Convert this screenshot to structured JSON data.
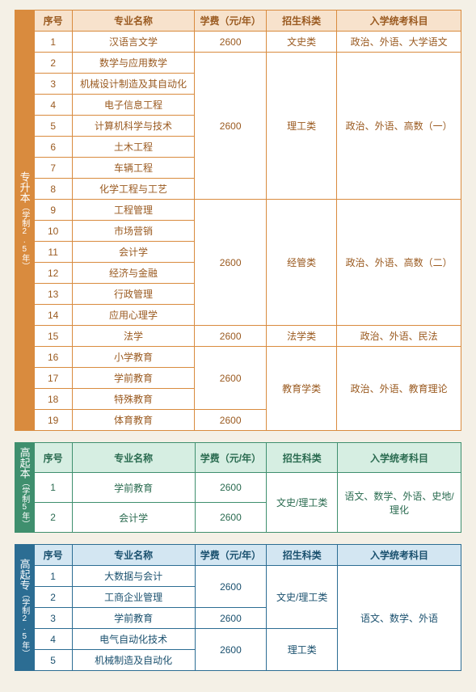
{
  "headers": {
    "idx": "序号",
    "name": "专业名称",
    "fee": "学费（元/年）",
    "cat": "招生科类",
    "exam": "入学统考科目"
  },
  "colors": {
    "orange": "#d98b3e",
    "green": "#3f8f6e",
    "blue": "#2c6d93",
    "bg": "#f4f0e6"
  },
  "sec1": {
    "tab": "专升本",
    "sub": "（学制2.5年）",
    "rows": [
      {
        "idx": "1",
        "name": "汉语言文学",
        "fee": "2600",
        "cat": "文史类",
        "exam": "政治、外语、大学语文"
      },
      {
        "idx": "2",
        "name": "数学与应用数学"
      },
      {
        "idx": "3",
        "name": "机械设计制造及其自动化"
      },
      {
        "idx": "4",
        "name": "电子信息工程"
      },
      {
        "idx": "5",
        "name": "计算机科学与技术",
        "fee": "2600",
        "cat": "理工类",
        "exam": "政治、外语、高数（一）"
      },
      {
        "idx": "6",
        "name": "土木工程"
      },
      {
        "idx": "7",
        "name": "车辆工程"
      },
      {
        "idx": "8",
        "name": "化学工程与工艺"
      },
      {
        "idx": "9",
        "name": "工程管理"
      },
      {
        "idx": "10",
        "name": "市场营销"
      },
      {
        "idx": "11",
        "name": "会计学"
      },
      {
        "idx": "12",
        "name": "经济与金融",
        "fee": "2600",
        "cat": "经管类",
        "exam": "政治、外语、高数（二）"
      },
      {
        "idx": "13",
        "name": "行政管理"
      },
      {
        "idx": "14",
        "name": "应用心理学"
      },
      {
        "idx": "15",
        "name": "法学",
        "fee": "2600",
        "cat": "法学类",
        "exam": "政治、外语、民法"
      },
      {
        "idx": "16",
        "name": "小学教育"
      },
      {
        "idx": "17",
        "name": "学前教育",
        "fee": "2600"
      },
      {
        "idx": "18",
        "name": "特殊教育",
        "cat": "教育学类",
        "exam": "政治、外语、教育理论"
      },
      {
        "idx": "19",
        "name": "体育教育",
        "fee": "2600"
      }
    ]
  },
  "sec2": {
    "tab": "高起本",
    "sub": "（学制5年）",
    "rows": [
      {
        "idx": "1",
        "name": "学前教育",
        "fee": "2600"
      },
      {
        "idx": "2",
        "name": "会计学",
        "fee": "2600",
        "cat": "文史/理工类",
        "exam": "语文、数学、外语、史地/理化"
      }
    ]
  },
  "sec3": {
    "tab": "高起专",
    "sub": "（学制2.5年）",
    "rows": [
      {
        "idx": "1",
        "name": "大数据与会计"
      },
      {
        "idx": "2",
        "name": "工商企业管理",
        "fee": "2600",
        "cat": "文史/理工类"
      },
      {
        "idx": "3",
        "name": "学前教育",
        "fee": "2600",
        "exam": "语文、数学、外语"
      },
      {
        "idx": "4",
        "name": "电气自动化技术"
      },
      {
        "idx": "5",
        "name": "机械制造及自动化",
        "fee": "2600",
        "cat": "理工类"
      }
    ]
  }
}
